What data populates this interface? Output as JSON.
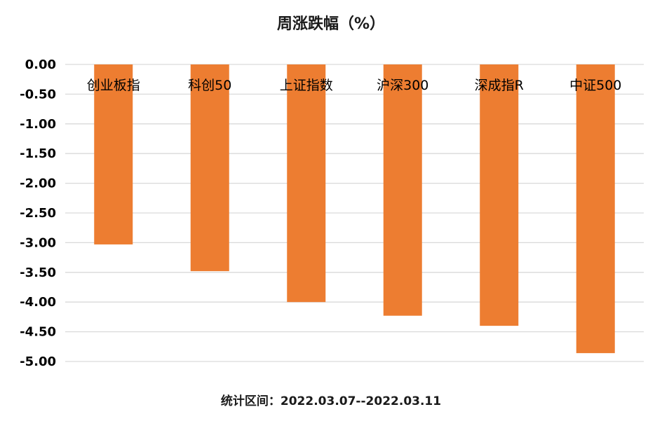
{
  "chart_data": {
    "type": "bar",
    "title": "周涨跌幅（%）",
    "categories": [
      "创业板指",
      "科创50",
      "上证指数",
      "沪深300",
      "深成指R",
      "中证500"
    ],
    "values": [
      -3.03,
      -3.48,
      -4.0,
      -4.23,
      -4.4,
      -4.86
    ],
    "ylim": [
      -5.0,
      0.0
    ],
    "yticks": [
      "0.00",
      "-0.50",
      "-1.00",
      "-1.50",
      "-2.00",
      "-2.50",
      "-3.00",
      "-3.50",
      "-4.00",
      "-4.50",
      "-5.00"
    ],
    "grid": true,
    "legend": "none",
    "bar_color": "#ED7D31",
    "grid_color": "#D9D9D9"
  },
  "footnote": {
    "prefix": "统计区间：",
    "range": "2022.03.07--2022.03.11"
  }
}
